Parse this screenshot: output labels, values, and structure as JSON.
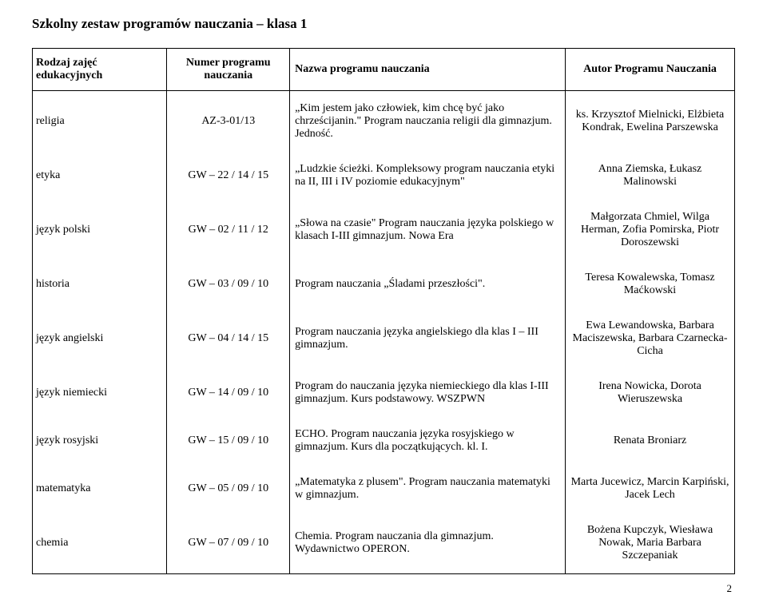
{
  "title": "Szkolny zestaw programów nauczania – klasa 1",
  "headers": {
    "subject": "Rodzaj zajęć edukacyjnych",
    "num": "Numer programu nauczania",
    "name": "Nazwa programu nauczania",
    "author": "Autor Programu Nauczania"
  },
  "rows": [
    {
      "subject": "religia",
      "num": "AZ-3-01/13",
      "name": "„Kim jestem jako człowiek, kim chcę być jako chrześcijanin.\" Program nauczania religii dla gimnazjum. Jedność.",
      "author": "ks. Krzysztof Mielnicki, Elżbieta Kondrak, Ewelina Parszewska"
    },
    {
      "subject": "etyka",
      "num": "GW – 22 / 14 / 15",
      "name": "„Ludzkie ścieżki. Kompleksowy program nauczania etyki na II, III i IV poziomie edukacyjnym\"",
      "author": "Anna Ziemska, Łukasz Malinowski"
    },
    {
      "subject": "język polski",
      "num": "GW – 02 / 11 / 12",
      "name": "„Słowa na czasie\" Program nauczania języka polskiego w klasach I-III gimnazjum. Nowa Era",
      "author": "Małgorzata Chmiel, Wilga Herman, Zofia Pomirska, Piotr Doroszewski"
    },
    {
      "subject": "historia",
      "num": "GW – 03 / 09 / 10",
      "name": "Program nauczania „Śladami przeszłości\".",
      "author": "Teresa Kowalewska, Tomasz Maćkowski"
    },
    {
      "subject": "język angielski",
      "num": "GW – 04 / 14 / 15",
      "name": "Program nauczania języka angielskiego dla klas I – III gimnazjum.",
      "author": "Ewa Lewandowska, Barbara Maciszewska, Barbara Czarnecka-Cicha"
    },
    {
      "subject": "język niemiecki",
      "num": "GW – 14 / 09 / 10",
      "name": "Program do nauczania języka niemieckiego dla klas I-III gimnazjum. Kurs podstawowy. WSZPWN",
      "author": "Irena Nowicka, Dorota Wieruszewska"
    },
    {
      "subject": "język rosyjski",
      "num": "GW – 15 / 09 / 10",
      "name": "ECHO. Program nauczania języka rosyjskiego w gimnazjum. Kurs dla początkujących. kl. I.",
      "author": "Renata Broniarz"
    },
    {
      "subject": "matematyka",
      "num": "GW – 05 / 09 / 10",
      "name": "„Matematyka z plusem\". Program nauczania matematyki w gimnazjum.",
      "author": "Marta Jucewicz, Marcin Karpiński, Jacek Lech"
    },
    {
      "subject": "chemia",
      "num": "GW – 07 / 09 / 10",
      "name": "Chemia. Program nauczania dla gimnazjum. Wydawnictwo OPERON.",
      "author": "Bożena Kupczyk, Wiesława Nowak, Maria Barbara Szczepaniak"
    }
  ],
  "page_number": "2"
}
